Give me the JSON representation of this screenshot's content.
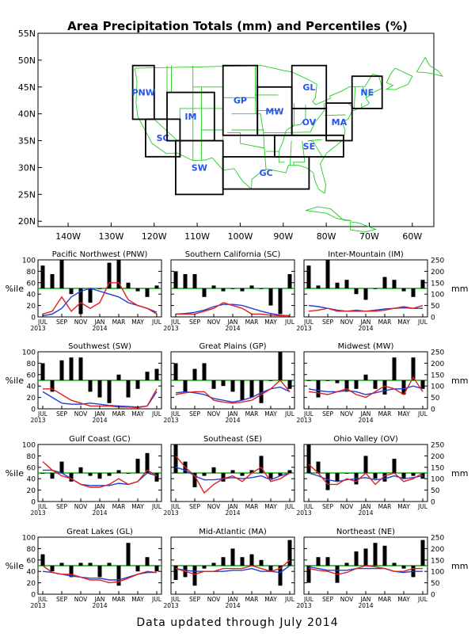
{
  "title": "Area Precipitation Totals (mm) and Percentiles (%)",
  "footer": "Data updated through July 2014",
  "colors": {
    "bar": "#000000",
    "percentile_line": "#e02020",
    "mean_line": "#1f3fd8",
    "reference_line": "#11aa11",
    "map_lines": "#22cc22",
    "region_label": "#2255ee"
  },
  "map": {
    "lat_labels": [
      "55N",
      "50N",
      "45N",
      "40N",
      "35N",
      "30N",
      "25N",
      "20N"
    ],
    "lon_labels": [
      "140W",
      "130W",
      "120W",
      "110W",
      "100W",
      "90W",
      "80W",
      "70W",
      "60W"
    ],
    "regions": [
      {
        "code": "PNW",
        "lon0": -125,
        "lon1": -120,
        "lat0": 39,
        "lat1": 49
      },
      {
        "code": "SC",
        "lon0": -122,
        "lon1": -114,
        "lat0": 32,
        "lat1": 39
      },
      {
        "code": "IM",
        "lon0": -117,
        "lon1": -106,
        "lat0": 35,
        "lat1": 44
      },
      {
        "code": "SW",
        "lon0": -115,
        "lon1": -104,
        "lat0": 25,
        "lat1": 35
      },
      {
        "code": "GP",
        "lon0": -104,
        "lon1": -96,
        "lat0": 36,
        "lat1": 49
      },
      {
        "code": "MW",
        "lon0": -96,
        "lon1": -88,
        "lat0": 36,
        "lat1": 45
      },
      {
        "code": "GL",
        "lon0": -88,
        "lon1": -80,
        "lat0": 41,
        "lat1": 49
      },
      {
        "code": "OV",
        "lon0": -88,
        "lon1": -80,
        "lat0": 36,
        "lat1": 41
      },
      {
        "code": "NE",
        "lon0": -74,
        "lon1": -67,
        "lat0": 41,
        "lat1": 47
      },
      {
        "code": "MA",
        "lon0": -80,
        "lon1": -74,
        "lat0": 35,
        "lat1": 42
      },
      {
        "code": "SE",
        "lon0": -92,
        "lon1": -76,
        "lat0": 32,
        "lat1": 36
      },
      {
        "code": "GC",
        "lon0": -104,
        "lon1": -84,
        "lat0": 26,
        "lat1": 32
      }
    ]
  },
  "chart_data": {
    "type": "bar",
    "x_tick_labels": [
      "JUL",
      "SEP",
      "NOV",
      "JAN",
      "MAR",
      "MAY",
      "JUL"
    ],
    "x_year_labels": [
      "2013",
      "2014"
    ],
    "left_axis": {
      "label": "%ile",
      "range": [
        0,
        100
      ],
      "ticks": [
        "0",
        "20",
        "40",
        "60",
        "80",
        "100"
      ]
    },
    "right_axis": {
      "label": "mm",
      "range": [
        0,
        250
      ],
      "ticks": [
        "0",
        "50",
        "100",
        "150",
        "200",
        "250"
      ]
    },
    "reference_value": 50,
    "panels": [
      {
        "title": "Pacific Northwest (PNW)",
        "bars": [
          90,
          75,
          100,
          40,
          5,
          25,
          50,
          95,
          100,
          60,
          45,
          35,
          55
        ],
        "red": [
          5,
          10,
          35,
          10,
          25,
          15,
          25,
          60,
          60,
          30,
          20,
          15,
          5
        ],
        "blue": [
          2,
          5,
          15,
          35,
          45,
          50,
          45,
          40,
          35,
          25,
          20,
          15,
          8
        ]
      },
      {
        "title": "Southern California (SC)",
        "bars": [
          80,
          75,
          75,
          35,
          55,
          45,
          50,
          45,
          55,
          50,
          20,
          5,
          75
        ],
        "red": [
          5,
          5,
          5,
          10,
          15,
          25,
          20,
          15,
          5,
          5,
          3,
          2,
          2
        ],
        "blue": [
          5,
          6,
          8,
          12,
          18,
          22,
          22,
          20,
          15,
          10,
          6,
          3,
          2
        ]
      },
      {
        "title": "Inter-Mountain (IM)",
        "bars": [
          90,
          55,
          100,
          60,
          65,
          40,
          30,
          50,
          70,
          65,
          45,
          35,
          65
        ],
        "red": [
          10,
          12,
          15,
          10,
          10,
          12,
          10,
          10,
          12,
          15,
          18,
          15,
          20
        ],
        "blue": [
          20,
          18,
          15,
          12,
          10,
          10,
          10,
          12,
          14,
          15,
          16,
          15,
          15
        ]
      },
      {
        "title": "Southwest (SW)",
        "bars": [
          80,
          30,
          85,
          90,
          90,
          30,
          20,
          10,
          60,
          20,
          35,
          65,
          70
        ],
        "red": [
          35,
          35,
          25,
          15,
          10,
          5,
          5,
          5,
          3,
          3,
          2,
          5,
          35
        ],
        "blue": [
          30,
          20,
          10,
          8,
          8,
          10,
          8,
          6,
          5,
          4,
          3,
          5,
          30
        ]
      },
      {
        "title": "Great Plains (GP)",
        "bars": [
          80,
          30,
          70,
          80,
          35,
          40,
          30,
          15,
          20,
          10,
          50,
          100,
          35
        ],
        "red": [
          25,
          28,
          30,
          30,
          15,
          12,
          10,
          12,
          15,
          25,
          35,
          50,
          30
        ],
        "blue": [
          28,
          30,
          28,
          25,
          18,
          15,
          12,
          15,
          20,
          28,
          35,
          38,
          30
        ]
      },
      {
        "title": "Midwest (MW)",
        "bars": [
          50,
          20,
          50,
          45,
          30,
          35,
          60,
          35,
          25,
          90,
          25,
          90,
          35
        ],
        "red": [
          30,
          28,
          25,
          30,
          35,
          25,
          20,
          30,
          40,
          35,
          25,
          55,
          30
        ],
        "blue": [
          35,
          32,
          30,
          30,
          32,
          30,
          25,
          28,
          32,
          35,
          35,
          40,
          35
        ]
      },
      {
        "title": "Gulf Coast (GC)",
        "bars": [
          50,
          40,
          70,
          35,
          60,
          45,
          40,
          45,
          55,
          50,
          75,
          85,
          35
        ],
        "red": [
          70,
          55,
          45,
          40,
          30,
          25,
          25,
          30,
          40,
          30,
          35,
          55,
          45
        ],
        "blue": [
          55,
          55,
          50,
          40,
          30,
          28,
          28,
          28,
          32,
          30,
          35,
          50,
          45
        ]
      },
      {
        "title": "Southeast (SE)",
        "bars": [
          100,
          70,
          25,
          45,
          60,
          35,
          55,
          45,
          55,
          80,
          40,
          45,
          55
        ],
        "red": [
          80,
          60,
          45,
          15,
          30,
          40,
          45,
          35,
          50,
          60,
          35,
          40,
          50
        ],
        "blue": [
          60,
          55,
          45,
          38,
          38,
          40,
          42,
          40,
          42,
          45,
          38,
          45,
          50
        ]
      },
      {
        "title": "Ohio Valley (OV)",
        "bars": [
          100,
          70,
          20,
          35,
          50,
          30,
          80,
          40,
          35,
          75,
          40,
          45,
          40
        ],
        "red": [
          65,
          50,
          30,
          30,
          40,
          35,
          50,
          30,
          45,
          50,
          35,
          40,
          50
        ],
        "blue": [
          50,
          45,
          38,
          35,
          38,
          40,
          42,
          38,
          40,
          45,
          40,
          42,
          45
        ]
      },
      {
        "title": "Great Lakes (GL)",
        "bars": [
          70,
          40,
          55,
          30,
          55,
          55,
          30,
          55,
          15,
          90,
          40,
          65,
          40
        ],
        "red": [
          50,
          38,
          35,
          35,
          30,
          25,
          25,
          20,
          22,
          28,
          35,
          40,
          38
        ],
        "blue": [
          40,
          38,
          35,
          32,
          30,
          28,
          28,
          25,
          25,
          30,
          35,
          38,
          38
        ]
      },
      {
        "title": "Mid-Atlantic (MA)",
        "bars": [
          25,
          30,
          15,
          45,
          55,
          65,
          80,
          65,
          70,
          60,
          40,
          15,
          95
        ],
        "red": [
          45,
          40,
          35,
          40,
          40,
          45,
          45,
          45,
          50,
          45,
          40,
          45,
          60
        ],
        "blue": [
          45,
          42,
          40,
          40,
          40,
          40,
          42,
          42,
          45,
          40,
          40,
          38,
          50
        ]
      },
      {
        "title": "Northeast (NE)",
        "bars": [
          20,
          65,
          65,
          20,
          55,
          75,
          80,
          90,
          85,
          55,
          45,
          30,
          95
        ],
        "red": [
          45,
          42,
          40,
          35,
          38,
          45,
          50,
          48,
          45,
          40,
          40,
          45,
          45
        ],
        "blue": [
          48,
          45,
          42,
          42,
          42,
          45,
          45,
          45,
          45,
          40,
          38,
          40,
          40
        ]
      }
    ]
  }
}
